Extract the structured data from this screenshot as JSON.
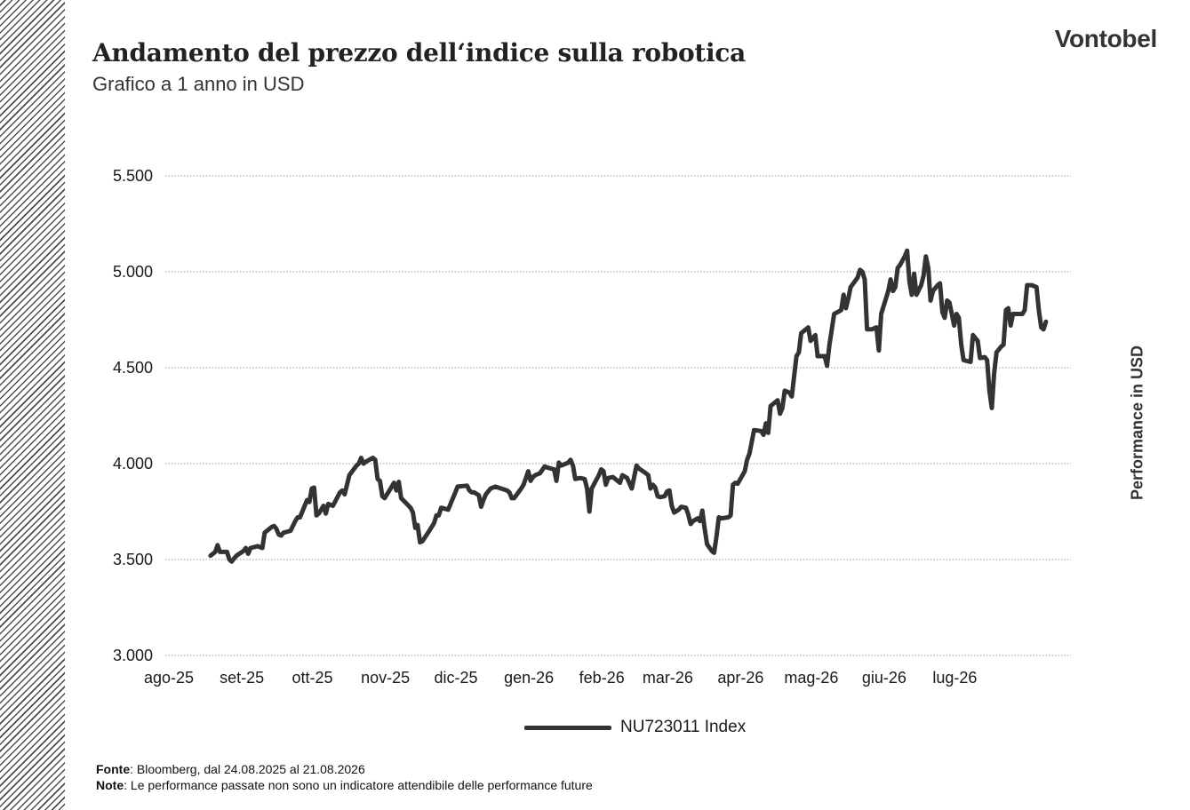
{
  "header": {
    "title": "Andamento del prezzo dell‘indice sulla robotica",
    "subtitle": "Grafico a 1 anno in USD",
    "logo": "Vontobel"
  },
  "footer": {
    "source_label": "Fonte",
    "source_text": ": Bloomberg, dal 24.08.2025 al 21.08.2026",
    "note_label": "Note",
    "note_text": ": Le performance passate non sono un indicatore attendibile delle performance future"
  },
  "chart_data": {
    "type": "line",
    "title": "Andamento del prezzo dell‘indice sulla robotica",
    "subtitle": "Grafico a 1 anno in USD",
    "xlabel": "",
    "ylabel": "Performance in USD",
    "ylim": [
      3000,
      5500
    ],
    "yticks": [
      3000,
      3500,
      4000,
      4500,
      5000,
      5500
    ],
    "ytick_labels": [
      "3.000",
      "3.500",
      "4.000",
      "4.500",
      "5.000",
      "5.500"
    ],
    "xtick_labels": [
      "ago-25",
      "set-25",
      "ott-25",
      "nov-25",
      "dic-25",
      "gen-26",
      "feb-26",
      "mar-26",
      "apr-26",
      "mag-26",
      "giu-26",
      "lug-26"
    ],
    "xtick_dates": [
      "2025-08-01",
      "2025-09-01",
      "2025-10-01",
      "2025-11-01",
      "2025-12-01",
      "2026-01-01",
      "2026-02-01",
      "2026-03-01",
      "2026-04-01",
      "2026-05-01",
      "2026-06-01",
      "2026-07-01"
    ],
    "grid": "horizontal dotted",
    "legend_position": "bottom-center",
    "line_color": "#333333",
    "series": [
      {
        "name": "NU723011 Index",
        "points": [
          [
            "2025-08-24",
            3520
          ],
          [
            "2025-08-26",
            3540
          ],
          [
            "2025-08-27",
            3575
          ],
          [
            "2025-08-28",
            3540
          ],
          [
            "2025-08-31",
            3540
          ],
          [
            "2025-09-01",
            3500
          ],
          [
            "2025-09-02",
            3490
          ],
          [
            "2025-09-04",
            3520
          ],
          [
            "2025-09-07",
            3545
          ],
          [
            "2025-09-08",
            3560
          ],
          [
            "2025-09-09",
            3530
          ],
          [
            "2025-09-10",
            3560
          ],
          [
            "2025-09-13",
            3570
          ],
          [
            "2025-09-15",
            3560
          ],
          [
            "2025-09-16",
            3640
          ],
          [
            "2025-09-19",
            3670
          ],
          [
            "2025-09-20",
            3675
          ],
          [
            "2025-09-21",
            3660
          ],
          [
            "2025-09-22",
            3630
          ],
          [
            "2025-09-23",
            3625
          ],
          [
            "2025-09-24",
            3640
          ],
          [
            "2025-09-27",
            3650
          ],
          [
            "2025-09-29",
            3700
          ],
          [
            "2025-09-30",
            3720
          ],
          [
            "2025-10-01",
            3720
          ],
          [
            "2025-10-04",
            3810
          ],
          [
            "2025-10-05",
            3800
          ],
          [
            "2025-10-06",
            3870
          ],
          [
            "2025-10-07",
            3875
          ],
          [
            "2025-10-08",
            3730
          ],
          [
            "2025-10-09",
            3740
          ],
          [
            "2025-10-11",
            3780
          ],
          [
            "2025-10-12",
            3740
          ],
          [
            "2025-10-13",
            3790
          ],
          [
            "2025-10-15",
            3780
          ],
          [
            "2025-10-18",
            3850
          ],
          [
            "2025-10-19",
            3860
          ],
          [
            "2025-10-20",
            3840
          ],
          [
            "2025-10-22",
            3940
          ],
          [
            "2025-10-25",
            3990
          ],
          [
            "2025-10-26",
            4000
          ],
          [
            "2025-10-27",
            4030
          ],
          [
            "2025-10-28",
            4000
          ],
          [
            "2025-10-29",
            4010
          ],
          [
            "2025-11-01",
            4030
          ],
          [
            "2025-11-02",
            4020
          ],
          [
            "2025-11-03",
            3920
          ],
          [
            "2025-11-04",
            3910
          ],
          [
            "2025-11-05",
            3830
          ],
          [
            "2025-11-06",
            3820
          ],
          [
            "2025-11-07",
            3840
          ],
          [
            "2025-11-09",
            3880
          ],
          [
            "2025-11-10",
            3900
          ],
          [
            "2025-11-11",
            3860
          ],
          [
            "2025-11-12",
            3905
          ],
          [
            "2025-11-13",
            3820
          ],
          [
            "2025-11-15",
            3795
          ],
          [
            "2025-11-17",
            3770
          ],
          [
            "2025-11-18",
            3745
          ],
          [
            "2025-11-19",
            3665
          ],
          [
            "2025-11-20",
            3680
          ],
          [
            "2025-11-21",
            3590
          ],
          [
            "2025-11-22",
            3595
          ],
          [
            "2025-11-25",
            3650
          ],
          [
            "2025-11-27",
            3690
          ],
          [
            "2025-11-28",
            3730
          ],
          [
            "2025-11-29",
            3730
          ],
          [
            "2025-11-30",
            3770
          ],
          [
            "2025-12-03",
            3760
          ],
          [
            "2025-12-05",
            3820
          ],
          [
            "2025-12-06",
            3850
          ],
          [
            "2025-12-07",
            3880
          ],
          [
            "2025-12-11",
            3885
          ],
          [
            "2025-12-12",
            3860
          ],
          [
            "2025-12-13",
            3850
          ],
          [
            "2025-12-14",
            3850
          ],
          [
            "2025-12-16",
            3835
          ],
          [
            "2025-12-17",
            3775
          ],
          [
            "2025-12-18",
            3810
          ],
          [
            "2025-12-19",
            3840
          ],
          [
            "2025-12-21",
            3870
          ],
          [
            "2025-12-23",
            3880
          ],
          [
            "2025-12-28",
            3860
          ],
          [
            "2025-12-29",
            3850
          ],
          [
            "2025-12-30",
            3820
          ],
          [
            "2025-12-31",
            3820
          ],
          [
            "2026-01-03",
            3870
          ],
          [
            "2026-01-04",
            3890
          ],
          [
            "2026-01-06",
            3960
          ],
          [
            "2026-01-07",
            3910
          ],
          [
            "2026-01-08",
            3930
          ],
          [
            "2026-01-09",
            3940
          ],
          [
            "2026-01-11",
            3950
          ],
          [
            "2026-01-13",
            3985
          ],
          [
            "2026-01-14",
            3980
          ],
          [
            "2026-01-17",
            3970
          ],
          [
            "2026-01-18",
            3910
          ],
          [
            "2026-01-19",
            4005
          ],
          [
            "2026-01-20",
            3990
          ],
          [
            "2026-01-23",
            4005
          ],
          [
            "2026-01-24",
            4020
          ],
          [
            "2026-01-25",
            3990
          ],
          [
            "2026-01-26",
            3920
          ],
          [
            "2026-01-28",
            3925
          ],
          [
            "2026-01-30",
            3920
          ],
          [
            "2026-01-31",
            3870
          ],
          [
            "2026-02-01",
            3750
          ],
          [
            "2026-02-02",
            3870
          ],
          [
            "2026-02-05",
            3940
          ],
          [
            "2026-02-06",
            3970
          ],
          [
            "2026-02-07",
            3960
          ],
          [
            "2026-02-08",
            3890
          ],
          [
            "2026-02-09",
            3925
          ],
          [
            "2026-02-11",
            3930
          ],
          [
            "2026-02-12",
            3920
          ],
          [
            "2026-02-14",
            3900
          ],
          [
            "2026-02-15",
            3940
          ],
          [
            "2026-02-17",
            3925
          ],
          [
            "2026-02-19",
            3870
          ],
          [
            "2026-02-21",
            3990
          ],
          [
            "2026-02-22",
            3975
          ],
          [
            "2026-02-25",
            3950
          ],
          [
            "2026-02-26",
            3940
          ],
          [
            "2026-02-27",
            3870
          ],
          [
            "2026-02-28",
            3890
          ],
          [
            "2026-03-01",
            3875
          ],
          [
            "2026-03-02",
            3830
          ],
          [
            "2026-03-03",
            3825
          ],
          [
            "2026-03-05",
            3830
          ],
          [
            "2026-03-06",
            3855
          ],
          [
            "2026-03-07",
            3860
          ],
          [
            "2026-03-08",
            3780
          ],
          [
            "2026-03-09",
            3745
          ],
          [
            "2026-03-11",
            3760
          ],
          [
            "2026-03-12",
            3775
          ],
          [
            "2026-03-14",
            3770
          ],
          [
            "2026-03-15",
            3735
          ],
          [
            "2026-03-16",
            3685
          ],
          [
            "2026-03-17",
            3700
          ],
          [
            "2026-03-19",
            3715
          ],
          [
            "2026-03-20",
            3700
          ],
          [
            "2026-03-21",
            3755
          ],
          [
            "2026-03-22",
            3660
          ],
          [
            "2026-03-23",
            3580
          ],
          [
            "2026-03-25",
            3545
          ],
          [
            "2026-03-26",
            3535
          ],
          [
            "2026-03-27",
            3620
          ],
          [
            "2026-03-28",
            3720
          ],
          [
            "2026-03-29",
            3715
          ],
          [
            "2026-04-01",
            3720
          ],
          [
            "2026-04-02",
            3730
          ],
          [
            "2026-04-03",
            3890
          ],
          [
            "2026-04-04",
            3900
          ],
          [
            "2026-04-05",
            3895
          ],
          [
            "2026-04-08",
            3960
          ],
          [
            "2026-04-09",
            4020
          ],
          [
            "2026-04-10",
            4050
          ],
          [
            "2026-04-12",
            4175
          ],
          [
            "2026-04-15",
            4170
          ],
          [
            "2026-04-16",
            4150
          ],
          [
            "2026-04-17",
            4210
          ],
          [
            "2026-04-18",
            4160
          ],
          [
            "2026-04-19",
            4300
          ],
          [
            "2026-04-20",
            4310
          ],
          [
            "2026-04-22",
            4330
          ],
          [
            "2026-04-23",
            4260
          ],
          [
            "2026-04-24",
            4290
          ],
          [
            "2026-04-25",
            4380
          ],
          [
            "2026-04-27",
            4370
          ],
          [
            "2026-04-28",
            4350
          ],
          [
            "2026-04-30",
            4560
          ],
          [
            "2026-05-01",
            4580
          ],
          [
            "2026-05-02",
            4680
          ],
          [
            "2026-05-03",
            4690
          ],
          [
            "2026-05-04",
            4700
          ],
          [
            "2026-05-05",
            4710
          ],
          [
            "2026-05-06",
            4640
          ],
          [
            "2026-05-08",
            4670
          ],
          [
            "2026-05-09",
            4560
          ],
          [
            "2026-05-12",
            4560
          ],
          [
            "2026-05-13",
            4510
          ],
          [
            "2026-05-14",
            4620
          ],
          [
            "2026-05-16",
            4780
          ],
          [
            "2026-05-19",
            4800
          ],
          [
            "2026-05-20",
            4880
          ],
          [
            "2026-05-21",
            4810
          ],
          [
            "2026-05-22",
            4860
          ],
          [
            "2026-05-23",
            4920
          ],
          [
            "2026-05-26",
            4970
          ],
          [
            "2026-05-27",
            5010
          ],
          [
            "2026-05-28",
            5000
          ],
          [
            "2026-05-29",
            4960
          ],
          [
            "2026-05-30",
            4700
          ],
          [
            "2026-06-01",
            4700
          ],
          [
            "2026-06-02",
            4705
          ],
          [
            "2026-06-03",
            4710
          ],
          [
            "2026-06-04",
            4590
          ],
          [
            "2026-06-05",
            4780
          ],
          [
            "2026-06-08",
            4900
          ],
          [
            "2026-06-09",
            4960
          ],
          [
            "2026-06-10",
            4900
          ],
          [
            "2026-06-11",
            4920
          ],
          [
            "2026-06-12",
            5020
          ],
          [
            "2026-06-13",
            5035
          ],
          [
            "2026-06-15",
            5080
          ],
          [
            "2026-06-16",
            5110
          ],
          [
            "2026-06-17",
            4950
          ],
          [
            "2026-06-18",
            4880
          ],
          [
            "2026-06-19",
            4990
          ],
          [
            "2026-06-20",
            4880
          ],
          [
            "2026-06-22",
            4930
          ],
          [
            "2026-06-23",
            4980
          ],
          [
            "2026-06-24",
            5080
          ],
          [
            "2026-06-25",
            5020
          ],
          [
            "2026-06-26",
            4850
          ],
          [
            "2026-06-27",
            4900
          ],
          [
            "2026-06-29",
            4930
          ],
          [
            "2026-06-30",
            4940
          ],
          [
            "2026-07-01",
            4790
          ],
          [
            "2026-07-02",
            4760
          ],
          [
            "2026-07-03",
            4850
          ],
          [
            "2026-07-04",
            4840
          ],
          [
            "2026-07-05",
            4780
          ],
          [
            "2026-07-06",
            4720
          ],
          [
            "2026-07-07",
            4780
          ],
          [
            "2026-07-08",
            4760
          ],
          [
            "2026-07-09",
            4620
          ],
          [
            "2026-07-10",
            4540
          ],
          [
            "2026-07-13",
            4530
          ],
          [
            "2026-07-14",
            4670
          ],
          [
            "2026-07-16",
            4640
          ],
          [
            "2026-07-17",
            4550
          ],
          [
            "2026-07-19",
            4555
          ],
          [
            "2026-07-20",
            4540
          ],
          [
            "2026-07-21",
            4380
          ],
          [
            "2026-07-22",
            4290
          ],
          [
            "2026-07-23",
            4470
          ],
          [
            "2026-07-24",
            4580
          ],
          [
            "2026-07-26",
            4610
          ],
          [
            "2026-07-27",
            4620
          ],
          [
            "2026-07-28",
            4800
          ],
          [
            "2026-07-29",
            4810
          ],
          [
            "2026-07-30",
            4720
          ],
          [
            "2026-07-31",
            4780
          ],
          [
            "2026-08-02",
            4780
          ],
          [
            "2026-08-04",
            4780
          ],
          [
            "2026-08-05",
            4800
          ],
          [
            "2026-08-06",
            4930
          ],
          [
            "2026-08-08",
            4930
          ],
          [
            "2026-08-10",
            4920
          ],
          [
            "2026-08-11",
            4800
          ],
          [
            "2026-08-12",
            4710
          ],
          [
            "2026-08-13",
            4700
          ],
          [
            "2026-08-14",
            4740
          ]
        ]
      }
    ]
  }
}
